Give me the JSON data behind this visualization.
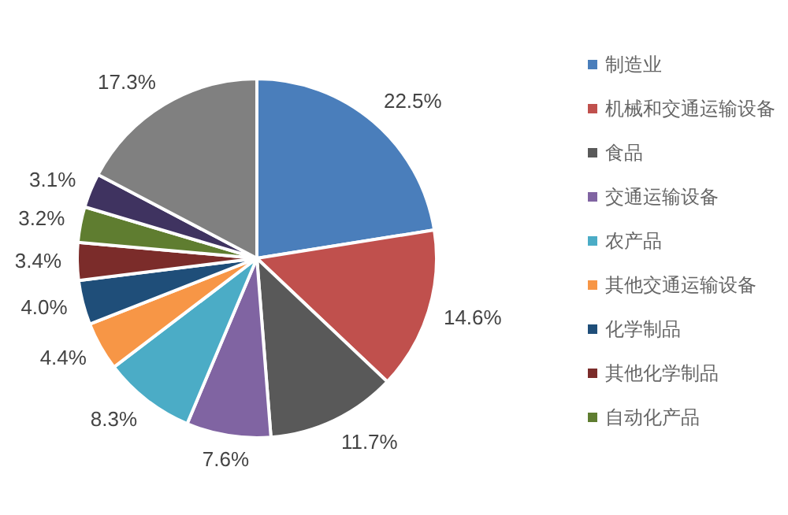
{
  "chart_data": {
    "type": "pie",
    "categories": [
      "制造业",
      "机械和交通运输设备",
      "食品",
      "交通运输设备",
      "农产品",
      "其他交通运输设备",
      "化学制品",
      "其他化学制品",
      "自动化产品",
      null,
      null
    ],
    "values": [
      22.5,
      14.6,
      11.7,
      7.6,
      8.3,
      4.4,
      4.0,
      3.4,
      3.2,
      3.1,
      17.3
    ],
    "value_labels": [
      "22.5%",
      "14.6%",
      "11.7%",
      "7.6%",
      "8.3%",
      "4.4%",
      "4.0%",
      "3.4%",
      "3.2%",
      "3.1%",
      "17.3%"
    ],
    "colors": [
      "#4a7ebb",
      "#c0504d",
      "#595959",
      "#8064a2",
      "#4bacc6",
      "#f79646",
      "#1f4e79",
      "#7b2c2a",
      "#5f7d30",
      "#3f3360",
      "#808080"
    ],
    "legend": "right"
  }
}
